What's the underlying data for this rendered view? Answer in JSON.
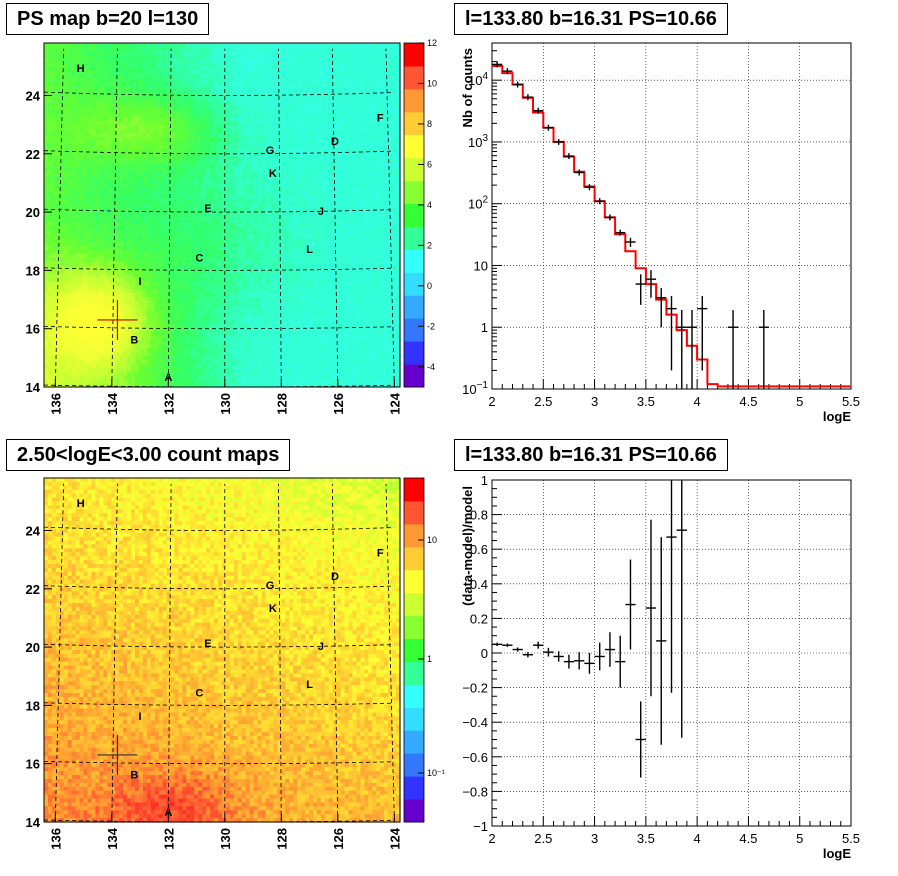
{
  "chart_data": [
    {
      "type": "heatmap",
      "title": "PS map b=20 l=130",
      "x_ticks": [
        "136",
        "134",
        "132",
        "130",
        "128",
        "126",
        "124"
      ],
      "y_ticks": [
        "14",
        "16",
        "18",
        "20",
        "22",
        "24"
      ],
      "xlim": [
        136.4,
        123.8
      ],
      "ylim": [
        14,
        25.8
      ],
      "colorbar": {
        "scale": "linear",
        "range": [
          -5,
          12
        ],
        "ticks": [
          "12",
          "10",
          "8",
          "6",
          "4",
          "2",
          "0",
          "-2",
          "-4"
        ]
      },
      "colorbar_palette": [
        "#6600cc",
        "#3333ff",
        "#3377ff",
        "#33aaff",
        "#33ddff",
        "#33ffff",
        "#33ff99",
        "#33ff33",
        "#88ff33",
        "#ccff33",
        "#ffff33",
        "#ffcc33",
        "#ff9933",
        "#ff5533",
        "#ff0000"
      ],
      "labels": [
        {
          "text": "H",
          "l": 135.1,
          "b": 24.8
        },
        {
          "text": "F",
          "l": 124.5,
          "b": 23.1
        },
        {
          "text": "D",
          "l": 126.1,
          "b": 22.3
        },
        {
          "text": "G",
          "l": 128.4,
          "b": 22.0
        },
        {
          "text": "K",
          "l": 128.3,
          "b": 21.2
        },
        {
          "text": "E",
          "l": 130.6,
          "b": 20.0
        },
        {
          "text": "J",
          "l": 126.6,
          "b": 19.9
        },
        {
          "text": "L",
          "l": 127.0,
          "b": 18.6
        },
        {
          "text": "C",
          "l": 130.9,
          "b": 18.3
        },
        {
          "text": "I",
          "l": 133.0,
          "b": 17.5
        },
        {
          "text": "B",
          "l": 133.2,
          "b": 15.5
        },
        {
          "text": "A",
          "l": 132.0,
          "b": 14.2
        }
      ],
      "marker": {
        "l": 133.8,
        "b": 16.3
      }
    },
    {
      "type": "line",
      "title": "l=133.80 b=16.31 PS=10.66",
      "xlabel": "logE",
      "ylabel": "Nb of counts",
      "yscale": "log",
      "xlim": [
        2,
        5.5
      ],
      "ylim": [
        0.1,
        40000
      ],
      "x_ticks": [
        "2",
        "2.5",
        "3",
        "3.5",
        "4",
        "4.5",
        "5",
        "5.5"
      ],
      "y_ticks": [
        {
          "v": 0.1,
          "base": "10",
          "exp": "−1"
        },
        {
          "v": 1,
          "base": "1",
          "exp": ""
        },
        {
          "v": 10,
          "base": "10",
          "exp": ""
        },
        {
          "v": 100,
          "base": "10",
          "exp": "2"
        },
        {
          "v": 1000,
          "base": "10",
          "exp": "3"
        },
        {
          "v": 10000,
          "base": "10",
          "exp": "4"
        }
      ],
      "model_color": "#ff0000",
      "bin_width": 0.1,
      "model_bins": [
        [
          2.0,
          17000
        ],
        [
          2.1,
          13000
        ],
        [
          2.2,
          8500
        ],
        [
          2.3,
          5200
        ],
        [
          2.4,
          3000
        ],
        [
          2.5,
          1700
        ],
        [
          2.6,
          1000
        ],
        [
          2.7,
          580
        ],
        [
          2.8,
          330
        ],
        [
          2.9,
          190
        ],
        [
          3.0,
          110
        ],
        [
          3.1,
          60
        ],
        [
          3.2,
          32
        ],
        [
          3.3,
          17
        ],
        [
          3.4,
          9
        ],
        [
          3.5,
          5
        ],
        [
          3.6,
          2.8
        ],
        [
          3.7,
          1.6
        ],
        [
          3.8,
          0.9
        ],
        [
          3.9,
          0.5
        ],
        [
          4.0,
          0.3
        ],
        [
          4.1,
          0.12
        ],
        [
          4.2,
          0.11
        ],
        [
          4.3,
          0.11
        ],
        [
          4.4,
          0.11
        ],
        [
          4.5,
          0.11
        ],
        [
          4.6,
          0.11
        ],
        [
          4.7,
          0.11
        ],
        [
          4.8,
          0.11
        ],
        [
          4.9,
          0.11
        ],
        [
          5.0,
          0.11
        ],
        [
          5.1,
          0.11
        ],
        [
          5.2,
          0.11
        ],
        [
          5.3,
          0.11
        ],
        [
          5.4,
          0.11
        ]
      ],
      "data_points": [
        [
          2.05,
          18000,
          0,
          0
        ],
        [
          2.15,
          14000,
          0,
          0
        ],
        [
          2.25,
          8500,
          0,
          0
        ],
        [
          2.35,
          5300,
          0,
          0
        ],
        [
          2.45,
          3200,
          0,
          0
        ],
        [
          2.55,
          1700,
          0,
          0
        ],
        [
          2.65,
          1000,
          0,
          0
        ],
        [
          2.75,
          590,
          0,
          0
        ],
        [
          2.85,
          320,
          0,
          0
        ],
        [
          2.95,
          185,
          0,
          0
        ],
        [
          3.05,
          110,
          0,
          0
        ],
        [
          3.15,
          60,
          0,
          0
        ],
        [
          3.25,
          34,
          0,
          0
        ],
        [
          3.35,
          24,
          4,
          4
        ],
        [
          3.45,
          5,
          2.7,
          2.2
        ],
        [
          3.55,
          6,
          3,
          2.4
        ],
        [
          3.65,
          3,
          2,
          1.3
        ],
        [
          3.75,
          2,
          1.8,
          1.2
        ],
        [
          3.85,
          1,
          1,
          0.9
        ],
        [
          3.95,
          1,
          1,
          0.9
        ],
        [
          4.05,
          2,
          1.8,
          1.2
        ],
        [
          4.35,
          1,
          1,
          0.9
        ],
        [
          4.65,
          1,
          1,
          0.9
        ]
      ]
    },
    {
      "type": "heatmap",
      "title": "2.50<logE<3.00 count maps",
      "x_ticks": [
        "136",
        "134",
        "132",
        "130",
        "128",
        "126",
        "124"
      ],
      "y_ticks": [
        "14",
        "16",
        "18",
        "20",
        "22",
        "24"
      ],
      "xlim": [
        136.4,
        123.8
      ],
      "ylim": [
        14,
        25.8
      ],
      "colorbar": {
        "scale": "log",
        "ticks": [
          "10",
          "1",
          "10⁻¹"
        ]
      },
      "labels": [
        {
          "text": "H",
          "l": 135.1,
          "b": 24.8
        },
        {
          "text": "F",
          "l": 124.5,
          "b": 23.1
        },
        {
          "text": "D",
          "l": 126.1,
          "b": 22.3
        },
        {
          "text": "G",
          "l": 128.4,
          "b": 22.0
        },
        {
          "text": "K",
          "l": 128.3,
          "b": 21.2
        },
        {
          "text": "E",
          "l": 130.6,
          "b": 20.0
        },
        {
          "text": "J",
          "l": 126.6,
          "b": 19.9
        },
        {
          "text": "L",
          "l": 127.0,
          "b": 18.6
        },
        {
          "text": "C",
          "l": 130.9,
          "b": 18.3
        },
        {
          "text": "I",
          "l": 133.0,
          "b": 17.5
        },
        {
          "text": "B",
          "l": 133.2,
          "b": 15.5
        },
        {
          "text": "A",
          "l": 132.0,
          "b": 14.2
        }
      ],
      "marker": {
        "l": 133.8,
        "b": 16.3
      }
    },
    {
      "type": "scatter",
      "title": "l=133.80 b=16.31 PS=10.66",
      "xlabel": "logE",
      "ylabel": "(data-model)/model",
      "xlim": [
        2,
        5.5
      ],
      "ylim": [
        -1,
        1
      ],
      "x_ticks": [
        "2",
        "2.5",
        "3",
        "3.5",
        "4",
        "4.5",
        "5",
        "5.5"
      ],
      "y_ticks": [
        "−1",
        "−0.8",
        "−0.6",
        "−0.4",
        "−0.2",
        "0",
        "0.2",
        "0.4",
        "0.6",
        "0.8",
        "1"
      ],
      "data_points": [
        [
          2.05,
          0.05,
          0.01
        ],
        [
          2.15,
          0.045,
          0.01
        ],
        [
          2.25,
          0.02,
          0.012
        ],
        [
          2.35,
          -0.01,
          0.015
        ],
        [
          2.45,
          0.045,
          0.02
        ],
        [
          2.55,
          0.005,
          0.025
        ],
        [
          2.65,
          -0.02,
          0.03
        ],
        [
          2.75,
          -0.05,
          0.04
        ],
        [
          2.85,
          -0.045,
          0.05
        ],
        [
          2.95,
          -0.06,
          0.06
        ],
        [
          3.05,
          -0.02,
          0.08
        ],
        [
          3.15,
          0.02,
          0.1
        ],
        [
          3.25,
          -0.05,
          0.15
        ],
        [
          3.35,
          0.28,
          0.26
        ],
        [
          3.45,
          -0.5,
          0.22
        ],
        [
          3.55,
          0.26,
          0.51
        ],
        [
          3.65,
          0.07,
          0.6
        ],
        [
          3.75,
          0.67,
          0.9
        ],
        [
          3.85,
          0.71,
          1.2
        ]
      ]
    }
  ]
}
